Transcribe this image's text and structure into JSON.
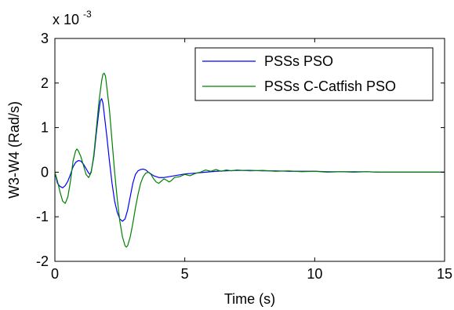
{
  "chart_data": {
    "type": "line",
    "title": "",
    "xlabel": "Time (s)",
    "ylabel": "W3-W4 (Rad/s)",
    "y_multiplier_label": "x 10",
    "y_multiplier_exponent": "-3",
    "xlim": [
      0,
      15
    ],
    "ylim": [
      -2,
      3
    ],
    "x_ticks": [
      0,
      5,
      10,
      15
    ],
    "y_ticks": [
      -2,
      -1,
      0,
      1,
      2,
      3
    ],
    "x_tick_labels": [
      "0",
      "5",
      "10",
      "15"
    ],
    "y_tick_labels": [
      "-2",
      "-1",
      "0",
      "1",
      "2",
      "3"
    ],
    "grid": false,
    "legend_position": "top-right",
    "series": [
      {
        "name": "PSSs PSO",
        "color": "#0000ff",
        "points": [
          [
            0.0,
            0.0
          ],
          [
            0.1,
            -0.25
          ],
          [
            0.2,
            -0.32
          ],
          [
            0.3,
            -0.35
          ],
          [
            0.4,
            -0.3
          ],
          [
            0.5,
            -0.2
          ],
          [
            0.6,
            -0.05
          ],
          [
            0.7,
            0.12
          ],
          [
            0.8,
            0.22
          ],
          [
            0.9,
            0.26
          ],
          [
            1.0,
            0.25
          ],
          [
            1.1,
            0.18
          ],
          [
            1.2,
            0.08
          ],
          [
            1.3,
            -0.02
          ],
          [
            1.35,
            -0.05
          ],
          [
            1.4,
            0.02
          ],
          [
            1.5,
            0.35
          ],
          [
            1.6,
            0.9
          ],
          [
            1.7,
            1.4
          ],
          [
            1.75,
            1.6
          ],
          [
            1.8,
            1.65
          ],
          [
            1.85,
            1.55
          ],
          [
            1.9,
            1.3
          ],
          [
            2.0,
            0.8
          ],
          [
            2.1,
            0.25
          ],
          [
            2.2,
            -0.25
          ],
          [
            2.3,
            -0.65
          ],
          [
            2.4,
            -0.9
          ],
          [
            2.5,
            -1.05
          ],
          [
            2.6,
            -1.1
          ],
          [
            2.7,
            -1.05
          ],
          [
            2.8,
            -0.85
          ],
          [
            2.9,
            -0.55
          ],
          [
            3.0,
            -0.25
          ],
          [
            3.1,
            -0.05
          ],
          [
            3.2,
            0.03
          ],
          [
            3.3,
            0.06
          ],
          [
            3.4,
            0.07
          ],
          [
            3.5,
            0.05
          ],
          [
            3.6,
            0.0
          ],
          [
            3.8,
            -0.08
          ],
          [
            4.0,
            -0.12
          ],
          [
            4.2,
            -0.12
          ],
          [
            4.4,
            -0.1
          ],
          [
            4.6,
            -0.08
          ],
          [
            4.8,
            -0.06
          ],
          [
            5.0,
            -0.04
          ],
          [
            5.4,
            -0.02
          ],
          [
            5.8,
            0.0
          ],
          [
            6.2,
            0.02
          ],
          [
            6.6,
            0.03
          ],
          [
            7.0,
            0.04
          ],
          [
            7.5,
            0.04
          ],
          [
            8.0,
            0.03
          ],
          [
            8.5,
            0.03
          ],
          [
            9.0,
            0.02
          ],
          [
            9.5,
            0.02
          ],
          [
            10.0,
            0.02
          ],
          [
            10.5,
            0.01
          ],
          [
            11.0,
            0.01
          ],
          [
            11.5,
            0.01
          ],
          [
            12.0,
            0.01
          ],
          [
            12.5,
            0.0
          ],
          [
            13.0,
            0.0
          ],
          [
            13.5,
            0.0
          ],
          [
            14.0,
            0.0
          ],
          [
            14.5,
            0.0
          ],
          [
            15.0,
            0.0
          ]
        ]
      },
      {
        "name": "PSSs C-Catfish PSO",
        "color": "#008000",
        "points": [
          [
            0.0,
            0.0
          ],
          [
            0.1,
            -0.2
          ],
          [
            0.2,
            -0.45
          ],
          [
            0.3,
            -0.65
          ],
          [
            0.4,
            -0.7
          ],
          [
            0.5,
            -0.55
          ],
          [
            0.6,
            -0.2
          ],
          [
            0.7,
            0.25
          ],
          [
            0.8,
            0.48
          ],
          [
            0.85,
            0.52
          ],
          [
            0.9,
            0.48
          ],
          [
            1.0,
            0.35
          ],
          [
            1.1,
            0.15
          ],
          [
            1.2,
            -0.05
          ],
          [
            1.3,
            -0.12
          ],
          [
            1.4,
            0.0
          ],
          [
            1.5,
            0.4
          ],
          [
            1.6,
            1.0
          ],
          [
            1.7,
            1.6
          ],
          [
            1.8,
            2.05
          ],
          [
            1.85,
            2.2
          ],
          [
            1.9,
            2.22
          ],
          [
            1.95,
            2.15
          ],
          [
            2.0,
            1.9
          ],
          [
            2.1,
            1.4
          ],
          [
            2.2,
            0.7
          ],
          [
            2.3,
            0.0
          ],
          [
            2.4,
            -0.6
          ],
          [
            2.5,
            -1.1
          ],
          [
            2.6,
            -1.45
          ],
          [
            2.7,
            -1.65
          ],
          [
            2.75,
            -1.68
          ],
          [
            2.8,
            -1.65
          ],
          [
            2.9,
            -1.45
          ],
          [
            3.0,
            -1.15
          ],
          [
            3.1,
            -0.8
          ],
          [
            3.2,
            -0.5
          ],
          [
            3.3,
            -0.25
          ],
          [
            3.4,
            -0.1
          ],
          [
            3.5,
            -0.02
          ],
          [
            3.6,
            0.0
          ],
          [
            3.7,
            -0.05
          ],
          [
            3.8,
            -0.15
          ],
          [
            3.9,
            -0.22
          ],
          [
            4.0,
            -0.25
          ],
          [
            4.1,
            -0.2
          ],
          [
            4.2,
            -0.15
          ],
          [
            4.3,
            -0.18
          ],
          [
            4.4,
            -0.22
          ],
          [
            4.5,
            -0.18
          ],
          [
            4.6,
            -0.12
          ],
          [
            4.8,
            -0.1
          ],
          [
            5.0,
            -0.05
          ],
          [
            5.2,
            -0.08
          ],
          [
            5.4,
            -0.03
          ],
          [
            5.6,
            0.0
          ],
          [
            5.8,
            0.05
          ],
          [
            6.0,
            0.02
          ],
          [
            6.2,
            0.06
          ],
          [
            6.4,
            0.02
          ],
          [
            6.6,
            0.05
          ],
          [
            6.8,
            0.03
          ],
          [
            7.0,
            0.05
          ],
          [
            7.5,
            0.03
          ],
          [
            8.0,
            0.04
          ],
          [
            8.5,
            0.02
          ],
          [
            9.0,
            0.03
          ],
          [
            9.5,
            0.01
          ],
          [
            10.0,
            0.02
          ],
          [
            10.5,
            0.0
          ],
          [
            11.0,
            0.01
          ],
          [
            11.5,
            0.0
          ],
          [
            12.0,
            0.01
          ],
          [
            12.5,
            0.0
          ],
          [
            13.0,
            0.0
          ],
          [
            13.5,
            0.0
          ],
          [
            14.0,
            0.0
          ],
          [
            14.5,
            0.0
          ],
          [
            15.0,
            0.0
          ]
        ]
      }
    ]
  }
}
